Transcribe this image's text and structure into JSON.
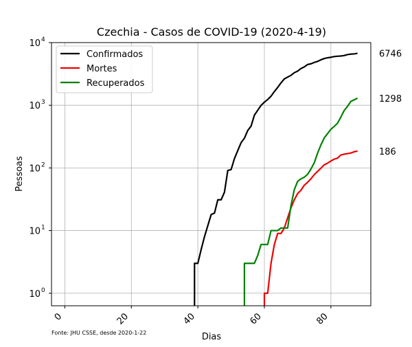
{
  "chart_data": {
    "type": "line",
    "title": "Czechia - Casos de COVID-19 (2020-4-19)",
    "xlabel": "Dias",
    "ylabel": "Pessoas",
    "xlim": [
      -4,
      92
    ],
    "ylim_log10": [
      -0.2,
      4.0
    ],
    "y_scale": "log",
    "grid": true,
    "legend_position": "top-left",
    "x_ticks": [
      0,
      20,
      40,
      60,
      80
    ],
    "y_tick_exponents": [
      0,
      1,
      2,
      3,
      4
    ],
    "y_tick_base": "10",
    "source_note": "Fonte: JHU CSSE, desde 2020-1-22",
    "series": [
      {
        "name": "Confirmados",
        "color": "#000000",
        "end_label": "6746",
        "points": [
          [
            39,
            0.5
          ],
          [
            39,
            3
          ],
          [
            40,
            3
          ],
          [
            41,
            5
          ],
          [
            42,
            8
          ],
          [
            43,
            12
          ],
          [
            44,
            18
          ],
          [
            45,
            19
          ],
          [
            46,
            31
          ],
          [
            47,
            31
          ],
          [
            48,
            41
          ],
          [
            49,
            91
          ],
          [
            50,
            94
          ],
          [
            51,
            141
          ],
          [
            52,
            189
          ],
          [
            53,
            253
          ],
          [
            54,
            298
          ],
          [
            55,
            396
          ],
          [
            56,
            464
          ],
          [
            57,
            694
          ],
          [
            58,
            833
          ],
          [
            59,
            995
          ],
          [
            60,
            1120
          ],
          [
            61,
            1236
          ],
          [
            62,
            1394
          ],
          [
            63,
            1654
          ],
          [
            64,
            1925
          ],
          [
            65,
            2279
          ],
          [
            66,
            2631
          ],
          [
            67,
            2817
          ],
          [
            68,
            3001
          ],
          [
            69,
            3308
          ],
          [
            70,
            3508
          ],
          [
            71,
            3858
          ],
          [
            72,
            4091
          ],
          [
            73,
            4472
          ],
          [
            74,
            4587
          ],
          [
            75,
            4822
          ],
          [
            76,
            5017
          ],
          [
            77,
            5312
          ],
          [
            78,
            5569
          ],
          [
            79,
            5732
          ],
          [
            80,
            5831
          ],
          [
            81,
            5991
          ],
          [
            82,
            6059
          ],
          [
            83,
            6111
          ],
          [
            84,
            6216
          ],
          [
            85,
            6433
          ],
          [
            86,
            6549
          ],
          [
            87,
            6606
          ],
          [
            88,
            6746
          ]
        ]
      },
      {
        "name": "Mortes",
        "color": "#ee0000",
        "end_label": "186",
        "points": [
          [
            60,
            0.5
          ],
          [
            60,
            1
          ],
          [
            61,
            1
          ],
          [
            62,
            3
          ],
          [
            63,
            6
          ],
          [
            64,
            9
          ],
          [
            65,
            9
          ],
          [
            66,
            11
          ],
          [
            67,
            16
          ],
          [
            68,
            23
          ],
          [
            69,
            31
          ],
          [
            70,
            39
          ],
          [
            71,
            44
          ],
          [
            72,
            53
          ],
          [
            73,
            59
          ],
          [
            74,
            67
          ],
          [
            75,
            78
          ],
          [
            76,
            88
          ],
          [
            77,
            99
          ],
          [
            78,
            112
          ],
          [
            79,
            119
          ],
          [
            80,
            129
          ],
          [
            81,
            138
          ],
          [
            82,
            143
          ],
          [
            83,
            161
          ],
          [
            84,
            166
          ],
          [
            85,
            169
          ],
          [
            86,
            173
          ],
          [
            87,
            181
          ],
          [
            88,
            186
          ]
        ]
      },
      {
        "name": "Recuperados",
        "color": "#008000",
        "end_label": "1298",
        "points": [
          [
            54,
            0.5
          ],
          [
            54,
            3
          ],
          [
            55,
            3
          ],
          [
            56,
            3
          ],
          [
            57,
            3
          ],
          [
            58,
            4
          ],
          [
            59,
            6
          ],
          [
            60,
            6
          ],
          [
            61,
            6
          ],
          [
            62,
            10
          ],
          [
            63,
            10
          ],
          [
            64,
            10
          ],
          [
            65,
            11
          ],
          [
            66,
            11
          ],
          [
            67,
            11
          ],
          [
            68,
            25
          ],
          [
            69,
            45
          ],
          [
            70,
            61
          ],
          [
            71,
            67
          ],
          [
            72,
            71
          ],
          [
            73,
            79
          ],
          [
            74,
            96
          ],
          [
            75,
            121
          ],
          [
            76,
            172
          ],
          [
            77,
            233
          ],
          [
            78,
            301
          ],
          [
            79,
            353
          ],
          [
            80,
            414
          ],
          [
            81,
            459
          ],
          [
            82,
            518
          ],
          [
            83,
            647
          ],
          [
            84,
            826
          ],
          [
            85,
            961
          ],
          [
            86,
            1151
          ],
          [
            87,
            1221
          ],
          [
            88,
            1298
          ]
        ]
      }
    ]
  }
}
